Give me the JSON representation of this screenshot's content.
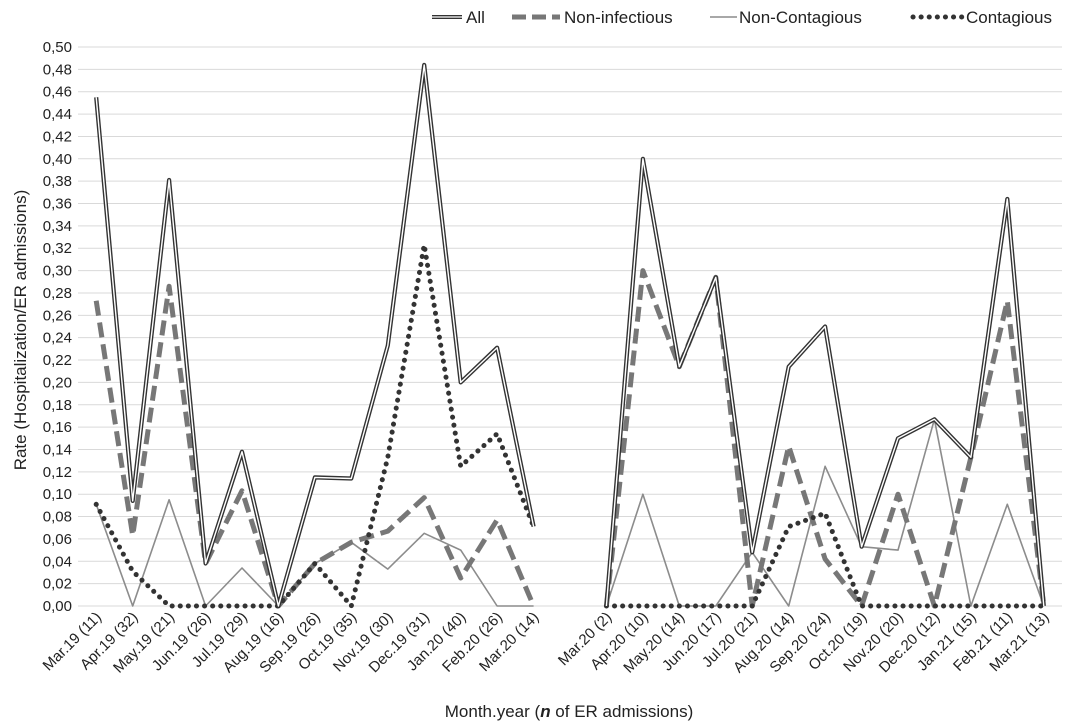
{
  "chart_data": {
    "type": "line",
    "xlabel_prefix": "Month.year (",
    "xlabel_emph": "n",
    "xlabel_suffix": " of ER admissions)",
    "ylabel": "Rate (Hospitalization/ER admissions)",
    "ylim": [
      0,
      0.5
    ],
    "yticks": [
      "0,00",
      "0,02",
      "0,04",
      "0,06",
      "0,08",
      "0,10",
      "0,12",
      "0,14",
      "0,16",
      "0,18",
      "0,20",
      "0,22",
      "0,24",
      "0,26",
      "0,28",
      "0,30",
      "0,32",
      "0,34",
      "0,36",
      "0,38",
      "0,40",
      "0,42",
      "0,44",
      "0,46",
      "0,48",
      "0,50"
    ],
    "grid": true,
    "legend_position": "top-right",
    "categories": [
      "Mar.19  (11)",
      "Apr.19  (32)",
      "May.19  (21)",
      "Jun.19  (26)",
      "Jul.19  (29)",
      "Aug.19  (16)",
      "Sep.19  (26)",
      "Oct.19  (35)",
      "Nov.19  (30)",
      "Dec.19  (31)",
      "Jan.20  (40)",
      "Feb.20  (26)",
      "Mar.20  (14)",
      "",
      "Mar.20  (2)",
      "Apr.20  (10)",
      "May.20  (14)",
      "Jun.20  (17)",
      "Jul.20 (21)",
      "Aug.20  (14)",
      "Sep.20  (24)",
      "Oct.20  (19)",
      "Nov.20  (20)",
      "Dec.20  (12)",
      "Jan.21  (15)",
      "Feb.21  (11)",
      "Mar.21  (13)"
    ],
    "series": [
      {
        "name": "All",
        "style": "double",
        "color": "#333333",
        "values": [
          0.455,
          0.094,
          0.381,
          0.038,
          0.138,
          0.0,
          0.115,
          0.114,
          0.233,
          0.484,
          0.2,
          0.231,
          0.071,
          null,
          0.0,
          0.4,
          0.214,
          0.294,
          0.048,
          0.214,
          0.25,
          0.053,
          0.15,
          0.167,
          0.133,
          0.364,
          0.0
        ]
      },
      {
        "name": "Non-infectious",
        "style": "dashed",
        "color": "#777777",
        "values": [
          0.273,
          0.063,
          0.286,
          0.038,
          0.103,
          0.0,
          0.038,
          0.057,
          0.067,
          0.097,
          0.025,
          0.077,
          0.0,
          null,
          0.0,
          0.3,
          0.214,
          0.294,
          0.0,
          0.143,
          0.042,
          0.0,
          0.1,
          0.0,
          0.133,
          0.273,
          0.0
        ]
      },
      {
        "name": "Non-Contagious",
        "style": "thin",
        "color": "#8c8c8c",
        "values": [
          0.091,
          0.0,
          0.095,
          0.0,
          0.034,
          0.0,
          0.038,
          0.057,
          0.033,
          0.065,
          0.05,
          0.0,
          0.0,
          null,
          0.0,
          0.1,
          0.0,
          0.0,
          0.048,
          0.0,
          0.125,
          0.053,
          0.05,
          0.167,
          0.0,
          0.091,
          0.0
        ]
      },
      {
        "name": "Contagious",
        "style": "dotted",
        "color": "#333333",
        "values": [
          0.091,
          0.031,
          0.0,
          0.0,
          0.0,
          0.0,
          0.038,
          0.0,
          0.133,
          0.323,
          0.125,
          0.154,
          0.071,
          null,
          0.0,
          0.0,
          0.0,
          0.0,
          0.0,
          0.071,
          0.083,
          0.0,
          0.0,
          0.0,
          0.0,
          0.0,
          0.0
        ]
      }
    ]
  }
}
